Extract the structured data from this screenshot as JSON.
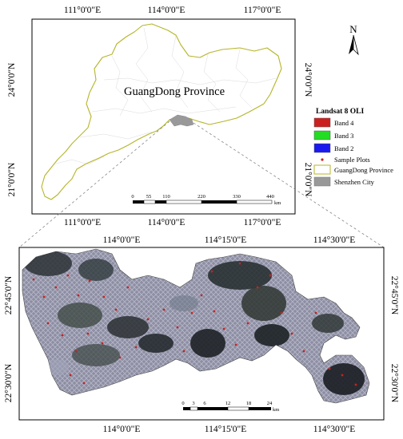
{
  "top_map": {
    "top_lon_labels": [
      "111°0'0\"E",
      "114°0'0\"E",
      "117°0'0\"E"
    ],
    "bottom_lon_labels": [
      "111°0'0\"E",
      "114°0'0\"E",
      "117°0'0\"E"
    ],
    "left_lat_labels": [
      "24°0'0\"N",
      "21°0'0\"N"
    ],
    "right_lat_labels": [
      "24°0'0\"N",
      "21°0'0\"N"
    ],
    "province_label": "GuangDong Province",
    "scale_ticks": [
      "0",
      "55",
      "110",
      "220",
      "330",
      "440"
    ],
    "scale_unit": "km",
    "north_label": "N"
  },
  "legend": {
    "title": "Landsat 8 OLI",
    "items": [
      {
        "label": "Band 4",
        "color": "#cc2020"
      },
      {
        "label": "Band 3",
        "color": "#22dd22"
      },
      {
        "label": "Band 2",
        "color": "#1a1aee"
      },
      {
        "label": "Sample Plots",
        "color": "#cc2020"
      },
      {
        "label": "GuangDong Province",
        "color": "#b5b52a"
      },
      {
        "label": "Shenzhen City",
        "color": "#999999"
      }
    ]
  },
  "bottom_map": {
    "top_lon_labels": [
      "114°0'0\"E",
      "114°15'0\"E",
      "114°30'0\"E"
    ],
    "bottom_lon_labels": [
      "114°0'0\"E",
      "114°15'0\"E",
      "114°30'0\"E"
    ],
    "left_lat_labels": [
      "22°45'0\"N",
      "22°30'0\"N"
    ],
    "right_lat_labels": [
      "22°45'0\"N",
      "22°30'0\"N"
    ],
    "scale_ticks": [
      "0",
      "3",
      "6",
      "12",
      "18",
      "24"
    ],
    "scale_unit": "km"
  }
}
